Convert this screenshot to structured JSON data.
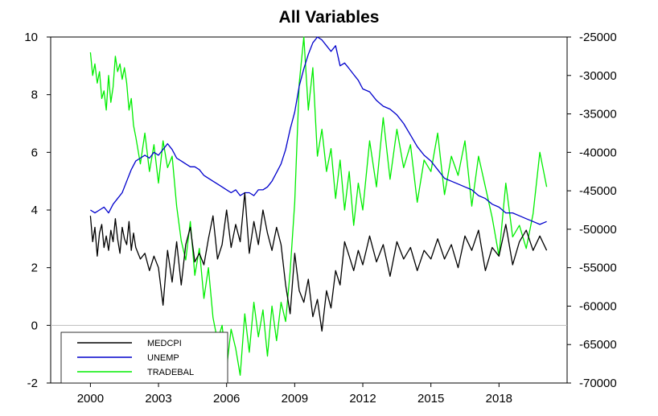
{
  "chart_data": {
    "type": "line",
    "title": "All Variables",
    "xlabel": "",
    "ylabel": "",
    "x_ticks": [
      "2000",
      "2003",
      "2006",
      "2009",
      "2012",
      "2015",
      "2018"
    ],
    "x_range": [
      1998.25,
      2021.0
    ],
    "left_axis": {
      "ylim": [
        -2,
        10
      ],
      "ticks": [
        "-2",
        "0",
        "2",
        "4",
        "6",
        "8",
        "10"
      ]
    },
    "right_axis": {
      "ylim": [
        -70000,
        -25000
      ],
      "ticks": [
        "-70000",
        "-65000",
        "-60000",
        "-55000",
        "-50000",
        "-45000",
        "-40000",
        "-35000",
        "-30000",
        "-25000"
      ]
    },
    "grid": false,
    "zero_line": true,
    "legend_position": "bottom-left",
    "series": [
      {
        "name": "MEDCPI",
        "axis": "left",
        "color": "#000000",
        "x": [
          2000.0,
          2000.1,
          2000.2,
          2000.3,
          2000.4,
          2000.5,
          2000.6,
          2000.7,
          2000.8,
          2000.9,
          2001.0,
          2001.1,
          2001.2,
          2001.3,
          2001.4,
          2001.5,
          2001.6,
          2001.7,
          2001.8,
          2001.9,
          2002.0,
          2002.2,
          2002.4,
          2002.6,
          2002.8,
          2003.0,
          2003.2,
          2003.4,
          2003.6,
          2003.8,
          2004.0,
          2004.2,
          2004.4,
          2004.6,
          2004.8,
          2005.0,
          2005.2,
          2005.4,
          2005.6,
          2005.8,
          2006.0,
          2006.2,
          2006.4,
          2006.6,
          2006.8,
          2007.0,
          2007.2,
          2007.4,
          2007.6,
          2007.8,
          2008.0,
          2008.2,
          2008.4,
          2008.6,
          2008.8,
          2009.0,
          2009.2,
          2009.4,
          2009.6,
          2009.8,
          2010.0,
          2010.2,
          2010.4,
          2010.6,
          2010.8,
          2011.0,
          2011.2,
          2011.4,
          2011.6,
          2011.8,
          2012.0,
          2012.3,
          2012.6,
          2012.9,
          2013.2,
          2013.5,
          2013.8,
          2014.1,
          2014.4,
          2014.7,
          2015.0,
          2015.3,
          2015.6,
          2015.9,
          2016.2,
          2016.5,
          2016.8,
          2017.1,
          2017.4,
          2017.7,
          2018.0,
          2018.3,
          2018.6,
          2018.9,
          2019.2,
          2019.5,
          2019.8,
          2020.1
        ],
        "values": [
          3.8,
          2.9,
          3.4,
          2.4,
          3.2,
          3.5,
          2.7,
          3.1,
          2.6,
          3.3,
          2.9,
          3.7,
          3.0,
          2.5,
          3.4,
          3.0,
          2.8,
          3.6,
          2.6,
          3.2,
          2.7,
          2.3,
          2.5,
          1.9,
          2.4,
          2.0,
          0.7,
          2.6,
          1.5,
          2.9,
          1.4,
          2.8,
          3.4,
          2.2,
          2.5,
          2.1,
          3.0,
          3.8,
          2.3,
          2.8,
          4.0,
          2.7,
          3.5,
          2.9,
          4.6,
          2.5,
          3.6,
          2.8,
          4.0,
          3.2,
          2.6,
          3.4,
          2.8,
          1.4,
          0.4,
          2.5,
          1.2,
          0.8,
          1.6,
          0.3,
          0.9,
          -0.2,
          1.2,
          0.6,
          1.9,
          1.4,
          2.9,
          2.4,
          1.9,
          2.6,
          2.1,
          3.1,
          2.2,
          2.8,
          1.7,
          2.9,
          2.3,
          2.7,
          1.9,
          2.6,
          2.3,
          3.0,
          2.3,
          2.8,
          2.0,
          3.1,
          2.6,
          3.3,
          1.9,
          2.7,
          2.4,
          3.5,
          2.1,
          2.9,
          3.3,
          2.6,
          3.1,
          2.6
        ]
      },
      {
        "name": "UNEMP",
        "axis": "left",
        "color": "#0000cc",
        "x": [
          2000.0,
          2000.2,
          2000.4,
          2000.6,
          2000.8,
          2001.0,
          2001.2,
          2001.4,
          2001.6,
          2001.8,
          2002.0,
          2002.2,
          2002.4,
          2002.6,
          2002.8,
          2003.0,
          2003.2,
          2003.4,
          2003.6,
          2003.8,
          2004.0,
          2004.2,
          2004.4,
          2004.6,
          2004.8,
          2005.0,
          2005.2,
          2005.4,
          2005.6,
          2005.8,
          2006.0,
          2006.2,
          2006.4,
          2006.6,
          2006.8,
          2007.0,
          2007.2,
          2007.4,
          2007.6,
          2007.8,
          2008.0,
          2008.2,
          2008.4,
          2008.6,
          2008.8,
          2009.0,
          2009.2,
          2009.4,
          2009.6,
          2009.8,
          2010.0,
          2010.2,
          2010.4,
          2010.6,
          2010.8,
          2011.0,
          2011.2,
          2011.4,
          2011.6,
          2011.8,
          2012.0,
          2012.3,
          2012.6,
          2012.9,
          2013.2,
          2013.5,
          2013.8,
          2014.1,
          2014.4,
          2014.7,
          2015.0,
          2015.3,
          2015.6,
          2015.9,
          2016.2,
          2016.5,
          2016.8,
          2017.1,
          2017.4,
          2017.7,
          2018.0,
          2018.3,
          2018.6,
          2018.9,
          2019.2,
          2019.5,
          2019.8,
          2020.1
        ],
        "values": [
          4.0,
          3.9,
          4.0,
          4.1,
          3.9,
          4.2,
          4.4,
          4.6,
          5.0,
          5.4,
          5.7,
          5.8,
          5.9,
          5.8,
          6.0,
          5.9,
          6.1,
          6.3,
          6.1,
          5.8,
          5.7,
          5.6,
          5.5,
          5.5,
          5.4,
          5.2,
          5.1,
          5.0,
          4.9,
          4.8,
          4.7,
          4.6,
          4.7,
          4.5,
          4.6,
          4.6,
          4.5,
          4.7,
          4.7,
          4.8,
          5.0,
          5.3,
          5.6,
          6.1,
          6.8,
          7.4,
          8.3,
          8.9,
          9.4,
          9.8,
          10.0,
          9.9,
          9.7,
          9.5,
          9.7,
          9.0,
          9.1,
          8.9,
          8.7,
          8.5,
          8.2,
          8.1,
          7.8,
          7.6,
          7.5,
          7.3,
          7.0,
          6.6,
          6.2,
          5.9,
          5.7,
          5.4,
          5.1,
          5.0,
          4.9,
          4.8,
          4.7,
          4.5,
          4.4,
          4.2,
          4.1,
          3.9,
          3.9,
          3.8,
          3.7,
          3.6,
          3.5,
          3.6
        ]
      },
      {
        "name": "TRADEBAL",
        "axis": "right",
        "color": "#00ee00",
        "x": [
          2000.0,
          2000.1,
          2000.2,
          2000.3,
          2000.4,
          2000.5,
          2000.6,
          2000.7,
          2000.8,
          2000.9,
          2001.0,
          2001.1,
          2001.2,
          2001.3,
          2001.4,
          2001.5,
          2001.6,
          2001.7,
          2001.8,
          2001.9,
          2002.0,
          2002.2,
          2002.4,
          2002.6,
          2002.8,
          2003.0,
          2003.2,
          2003.4,
          2003.6,
          2003.8,
          2004.0,
          2004.2,
          2004.4,
          2004.6,
          2004.8,
          2005.0,
          2005.2,
          2005.4,
          2005.6,
          2005.8,
          2006.0,
          2006.2,
          2006.4,
          2006.6,
          2006.8,
          2007.0,
          2007.2,
          2007.4,
          2007.6,
          2007.8,
          2008.0,
          2008.2,
          2008.4,
          2008.6,
          2008.8,
          2009.0,
          2009.2,
          2009.4,
          2009.6,
          2009.8,
          2010.0,
          2010.2,
          2010.4,
          2010.6,
          2010.8,
          2011.0,
          2011.2,
          2011.4,
          2011.6,
          2011.8,
          2012.0,
          2012.3,
          2012.6,
          2012.9,
          2013.2,
          2013.5,
          2013.8,
          2014.1,
          2014.4,
          2014.7,
          2015.0,
          2015.3,
          2015.6,
          2015.9,
          2016.2,
          2016.5,
          2016.8,
          2017.1,
          2017.4,
          2017.7,
          2018.0,
          2018.3,
          2018.6,
          2018.9,
          2019.2,
          2019.5,
          2019.8,
          2020.1
        ],
        "values": [
          -27000,
          -30000,
          -28500,
          -31000,
          -29500,
          -33000,
          -32000,
          -34500,
          -30000,
          -33500,
          -31500,
          -27500,
          -29500,
          -28500,
          -30500,
          -29000,
          -31000,
          -34500,
          -33000,
          -36500,
          -38000,
          -41500,
          -37500,
          -42500,
          -39000,
          -44000,
          -38500,
          -42000,
          -40500,
          -47000,
          -51500,
          -54000,
          -49000,
          -56000,
          -52500,
          -59000,
          -55000,
          -61500,
          -64500,
          -62500,
          -68000,
          -63000,
          -65500,
          -69000,
          -61000,
          -66000,
          -59500,
          -64000,
          -60500,
          -66500,
          -60000,
          -64500,
          -59500,
          -62000,
          -55500,
          -46500,
          -31000,
          -25000,
          -34500,
          -29000,
          -40500,
          -37000,
          -42500,
          -39500,
          -46000,
          -41000,
          -47500,
          -42500,
          -49500,
          -44000,
          -47500,
          -38500,
          -44500,
          -35500,
          -43500,
          -37000,
          -42000,
          -39000,
          -46500,
          -41000,
          -42500,
          -37500,
          -45500,
          -40500,
          -43000,
          -38500,
          -47000,
          -40500,
          -44500,
          -48500,
          -53500,
          -44000,
          -51000,
          -49500,
          -52500,
          -48000,
          -40000,
          -44500
        ]
      }
    ]
  }
}
